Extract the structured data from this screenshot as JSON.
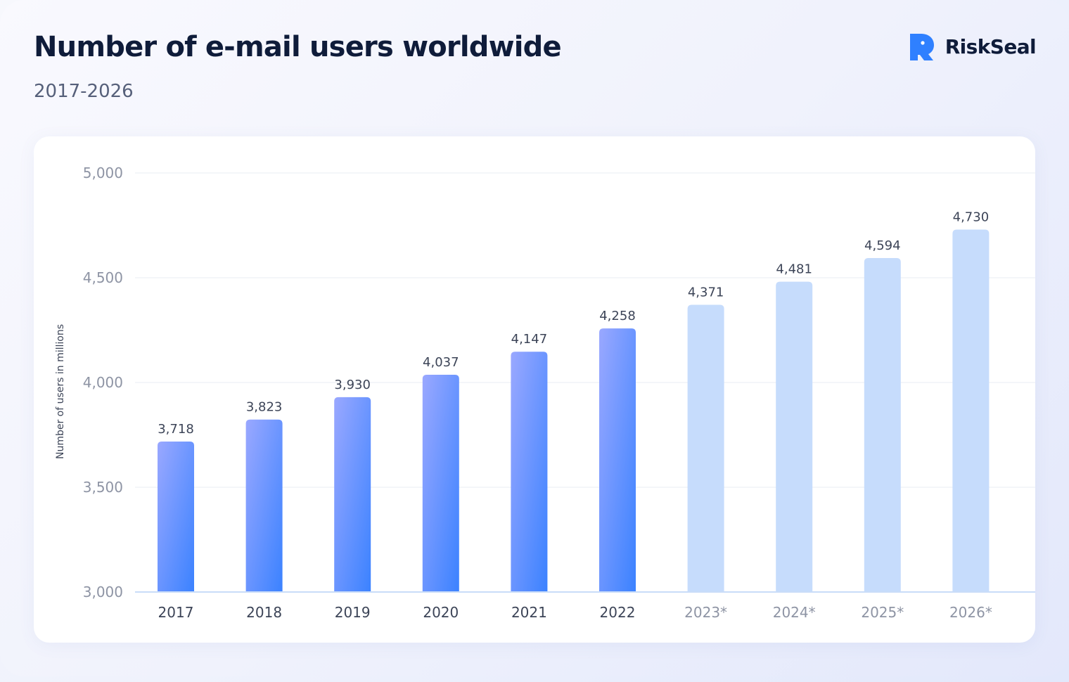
{
  "header": {
    "title": "Number of e-mail users worldwide",
    "subtitle": "2017-2026"
  },
  "brand": {
    "name": "RiskSeal",
    "icon": "riskseal-logo-icon",
    "color": "#2f80ff"
  },
  "colors": {
    "actual_bar_top": "#9aa8ff",
    "actual_bar_bottom": "#3b82ff",
    "forecast_bar": "#c6dcfc",
    "axis_line": "#c9dcf8",
    "grid_line": "#eef0f5",
    "actual_tick": "#3c4457",
    "forecast_tick": "#8e94a4"
  },
  "chart_data": {
    "type": "bar",
    "title": "Number of e-mail users worldwide",
    "subtitle": "2017-2026",
    "xlabel": "",
    "ylabel": "Number of users in millions",
    "ylim": [
      3000,
      5000
    ],
    "yticks": [
      3000,
      3500,
      4000,
      4500,
      5000
    ],
    "ytick_labels": [
      "3,000",
      "3,500",
      "4,000",
      "4,500",
      "5,000"
    ],
    "grid": true,
    "categories": [
      "2017",
      "2018",
      "2019",
      "2020",
      "2021",
      "2022",
      "2023*",
      "2024*",
      "2025*",
      "2026*"
    ],
    "values": [
      3718,
      3823,
      3930,
      4037,
      4147,
      4258,
      4371,
      4481,
      4594,
      4730
    ],
    "value_labels": [
      "3,718",
      "3,823",
      "3,930",
      "4,037",
      "4,147",
      "4,258",
      "4,371",
      "4,481",
      "4,594",
      "4,730"
    ],
    "forecast": [
      false,
      false,
      false,
      false,
      false,
      false,
      true,
      true,
      true,
      true
    ]
  }
}
